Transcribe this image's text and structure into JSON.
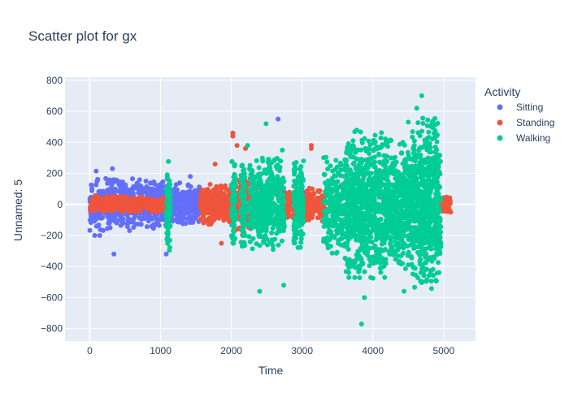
{
  "chart_data": {
    "type": "scatter",
    "title": "Scatter plot for gx",
    "xlabel": "Time",
    "ylabel": "Unnamed: 5",
    "xlim": [
      -350,
      5450
    ],
    "ylim": [
      -880,
      820
    ],
    "xticks": [
      0,
      1000,
      2000,
      3000,
      4000,
      5000
    ],
    "yticks": [
      -800,
      -600,
      -400,
      -200,
      0,
      200,
      400,
      600,
      800
    ],
    "grid": true,
    "legend": {
      "title": "Activity",
      "position": "top-right"
    },
    "series": [
      {
        "name": "Sitting",
        "color": "#636efa",
        "segments": [
          {
            "x_start": 0,
            "x_end": 1100,
            "spread": 170,
            "count": 560
          },
          {
            "x_start": 1150,
            "x_end": 1560,
            "spread": 140,
            "count": 220
          },
          {
            "x_start": 2700,
            "x_end": 2800,
            "spread": 80,
            "count": 40
          },
          {
            "x_start": 3000,
            "x_end": 3100,
            "spread": 90,
            "count": 40
          }
        ],
        "outliers": [
          {
            "x": 320,
            "y": 230
          },
          {
            "x": 90,
            "y": 215
          },
          {
            "x": 340,
            "y": -320
          },
          {
            "x": 140,
            "y": -200
          },
          {
            "x": 70,
            "y": -200
          },
          {
            "x": 1080,
            "y": -320
          },
          {
            "x": 2660,
            "y": 550
          },
          {
            "x": 1420,
            "y": 180
          }
        ]
      },
      {
        "name": "Standing",
        "color": "#ef553b",
        "segments": [
          {
            "x_start": 0,
            "x_end": 1120,
            "spread": 55,
            "count": 320
          },
          {
            "x_start": 1560,
            "x_end": 2050,
            "spread": 130,
            "count": 300
          },
          {
            "x_start": 2050,
            "x_end": 2350,
            "spread": 200,
            "count": 160
          },
          {
            "x_start": 2720,
            "x_end": 3320,
            "spread": 110,
            "count": 240
          },
          {
            "x_start": 4950,
            "x_end": 5100,
            "spread": 60,
            "count": 70
          }
        ],
        "outliers": [
          {
            "x": 2020,
            "y": 460
          },
          {
            "x": 2020,
            "y": 440
          },
          {
            "x": 2080,
            "y": 380
          },
          {
            "x": 3130,
            "y": 380
          },
          {
            "x": 3130,
            "y": 360
          },
          {
            "x": 1770,
            "y": 260
          },
          {
            "x": 1860,
            "y": -250
          },
          {
            "x": 2200,
            "y": 360
          }
        ]
      },
      {
        "name": "Walking",
        "color": "#00cc96",
        "segments": [
          {
            "x_start": 1080,
            "x_end": 1140,
            "spread": 300,
            "count": 90
          },
          {
            "x_start": 2000,
            "x_end": 2060,
            "spread": 280,
            "count": 90
          },
          {
            "x_start": 2130,
            "x_end": 2200,
            "spread": 300,
            "count": 90
          },
          {
            "x_start": 2250,
            "x_end": 2750,
            "spread": 300,
            "count": 420
          },
          {
            "x_start": 2880,
            "x_end": 3020,
            "spread": 290,
            "count": 140
          },
          {
            "x_start": 3300,
            "x_end": 3600,
            "spread": 320,
            "count": 240
          },
          {
            "x_start": 3600,
            "x_end": 4200,
            "spread": 480,
            "count": 760
          },
          {
            "x_start": 4200,
            "x_end": 4550,
            "spread": 420,
            "count": 380
          },
          {
            "x_start": 4550,
            "x_end": 4960,
            "spread": 560,
            "count": 560
          }
        ],
        "outliers": [
          {
            "x": 2490,
            "y": 520
          },
          {
            "x": 2230,
            "y": 380
          },
          {
            "x": 2400,
            "y": -560
          },
          {
            "x": 3840,
            "y": -770
          },
          {
            "x": 3880,
            "y": -600
          },
          {
            "x": 4690,
            "y": 700
          },
          {
            "x": 4620,
            "y": 620
          },
          {
            "x": 4440,
            "y": -560
          },
          {
            "x": 4500,
            "y": 530
          },
          {
            "x": 2720,
            "y": 350
          },
          {
            "x": 2740,
            "y": -520
          }
        ]
      }
    ]
  }
}
